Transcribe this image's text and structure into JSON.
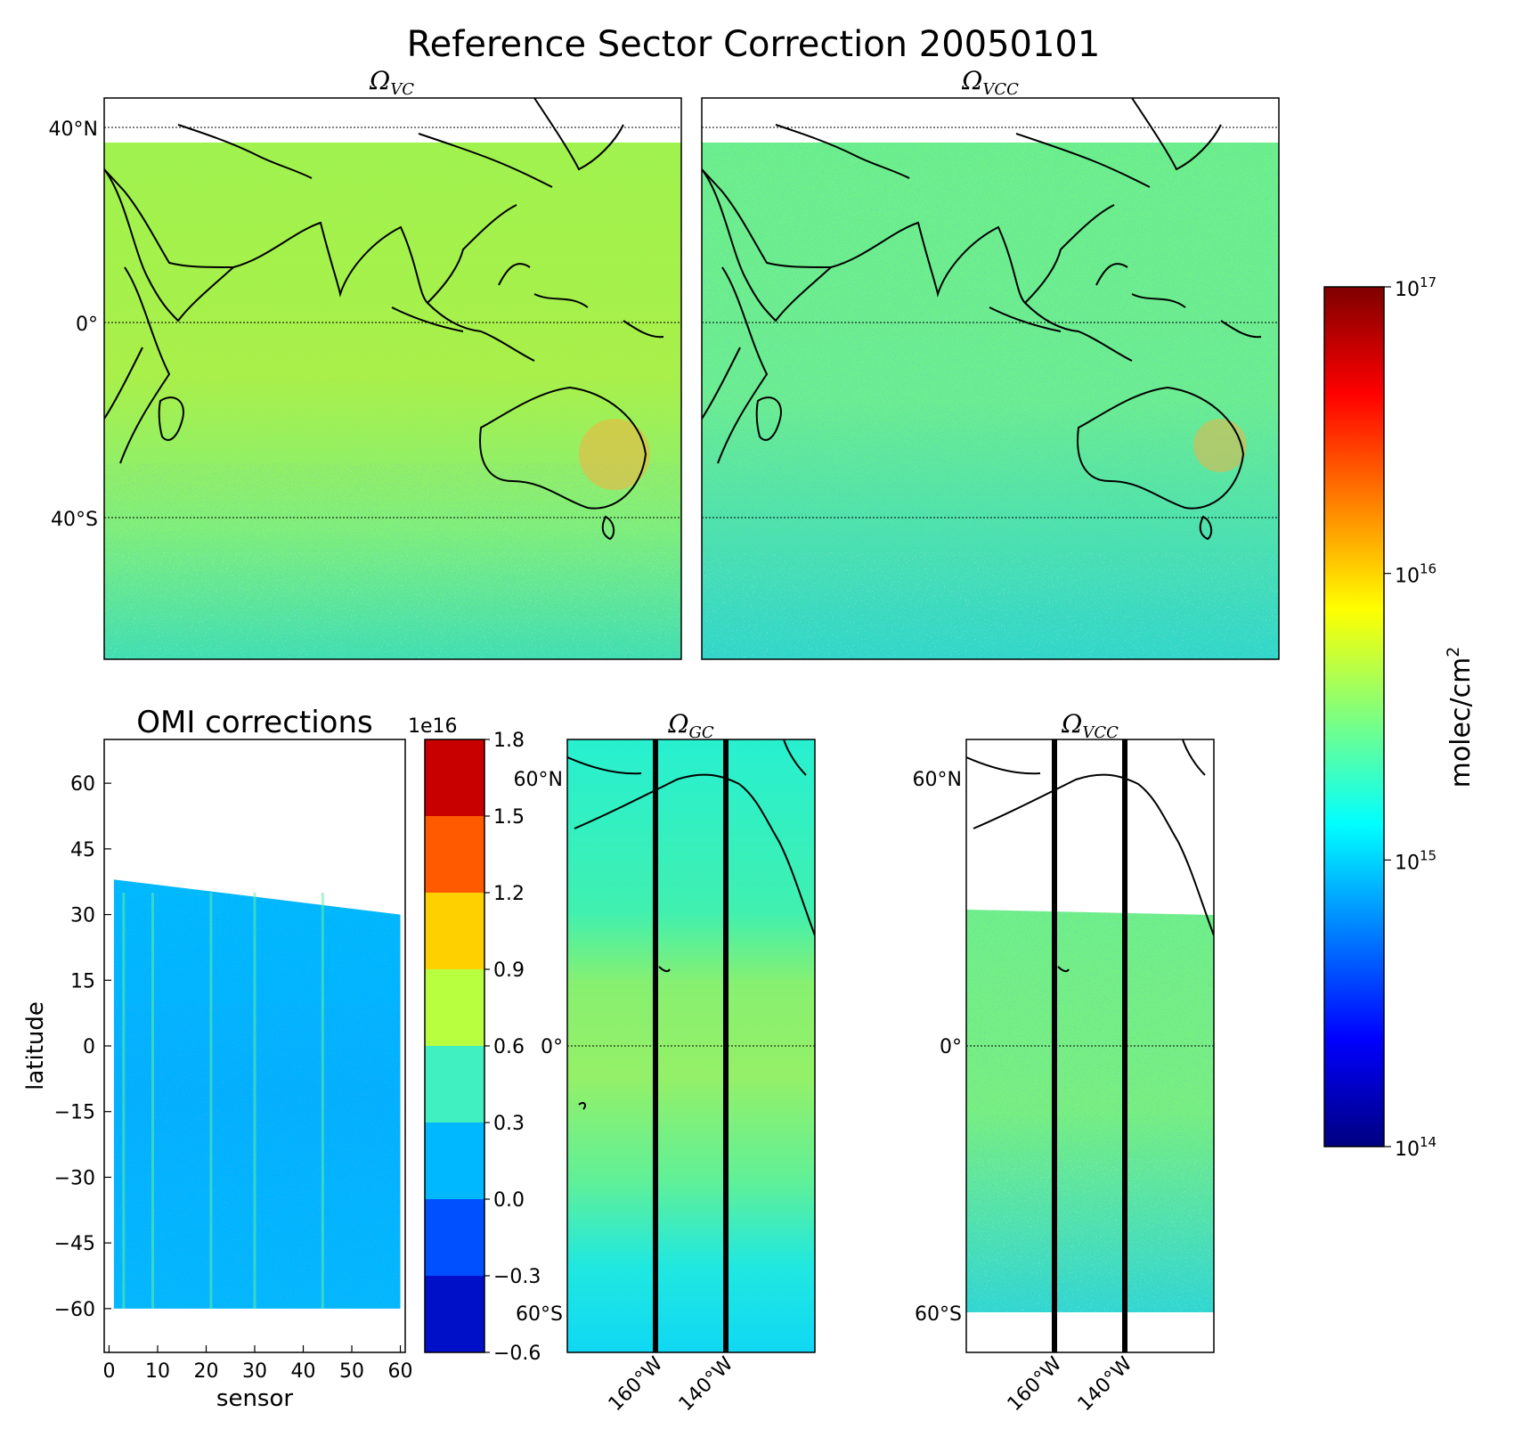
{
  "figure": {
    "title": "Reference Sector Correction 20050101"
  },
  "chart_data": [
    {
      "type": "heatmap",
      "panel": "top-left map",
      "title": "Ω",
      "title_subscript": "VC",
      "lat_ticks": [
        "40°N",
        "0°",
        "40°S"
      ],
      "lat_tick_values": [
        40,
        0,
        -40
      ],
      "ylim": [
        -70,
        46
      ],
      "colorbar": "shared log colorbar"
    },
    {
      "type": "heatmap",
      "panel": "top-right map",
      "title": "Ω",
      "title_subscript": "VCC",
      "lat_tick_values": [
        40,
        0,
        -40
      ],
      "ylim": [
        -70,
        46
      ],
      "colorbar": "shared log colorbar"
    },
    {
      "type": "heatmap",
      "panel": "OMI corrections",
      "title": "OMI corrections",
      "xlabel": "sensor",
      "ylabel": "latitude",
      "xlim": [
        -1,
        61
      ],
      "ylim": [
        -70,
        70
      ],
      "x_ticks": [
        "0",
        "10",
        "20",
        "30",
        "40",
        "50",
        "60"
      ],
      "x_tick_values": [
        0,
        10,
        20,
        30,
        40,
        50,
        60
      ],
      "y_ticks": [
        "60",
        "45",
        "30",
        "15",
        "0",
        "−15",
        "−30",
        "−45",
        "−60"
      ],
      "y_tick_values": [
        60,
        45,
        30,
        15,
        0,
        -15,
        -30,
        -45,
        -60
      ],
      "data_extent": {
        "sensor": [
          1,
          60
        ],
        "latitude_top_left": 38,
        "latitude_top_right": 30,
        "latitude_bottom": -60
      },
      "colorbar": {
        "multiplier": "1e16",
        "levels": [
          -0.6,
          -0.3,
          0.0,
          0.3,
          0.6,
          0.9,
          1.2,
          1.5,
          1.8
        ],
        "level_labels": [
          "−0.6",
          "−0.3",
          "0.0",
          "0.3",
          "0.6",
          "0.9",
          "1.2",
          "1.5",
          "1.8"
        ],
        "colors": [
          "#0010c8",
          "#0050ff",
          "#00b8ff",
          "#40f0c0",
          "#b8ff40",
          "#ffd000",
          "#ff5a00",
          "#c80000"
        ]
      }
    },
    {
      "type": "heatmap",
      "panel": "bottom-middle map",
      "title": "Ω",
      "title_subscript": "GC",
      "lat_ticks": [
        "60°N",
        "0°",
        "60°S"
      ],
      "lat_tick_values": [
        60,
        0,
        -60
      ],
      "lon_ticks": [
        "160°W",
        "140°W"
      ],
      "lon_tick_values": [
        -160,
        -140
      ],
      "ylim": [
        -70,
        70
      ],
      "xlim": [
        -185,
        -115
      ]
    },
    {
      "type": "heatmap",
      "panel": "bottom-right map",
      "title": "Ω",
      "title_subscript": "VCC",
      "lat_ticks": [
        "60°N",
        "0°",
        "60°S"
      ],
      "lat_tick_values": [
        60,
        0,
        -60
      ],
      "lon_ticks": [
        "160°W",
        "140°W"
      ],
      "lon_tick_values": [
        -160,
        -140
      ],
      "ylim": [
        -70,
        70
      ],
      "xlim": [
        -185,
        -115
      ],
      "data_lat_range": [
        -60,
        32
      ]
    }
  ],
  "colorbar_main": {
    "label": "molec/cm",
    "label_superscript": "2",
    "scale": "log",
    "range": [
      100000000000000.0,
      1e+17
    ],
    "tick_values": [
      14,
      15,
      16,
      17
    ],
    "tick_base": "10",
    "tick_exponents": [
      "17",
      "16",
      "15",
      "14"
    ],
    "colormap": [
      "#00007f",
      "#0000ff",
      "#007fff",
      "#00ffff",
      "#7fff7f",
      "#ffff00",
      "#ff7f00",
      "#ff0000",
      "#7f0000"
    ]
  }
}
